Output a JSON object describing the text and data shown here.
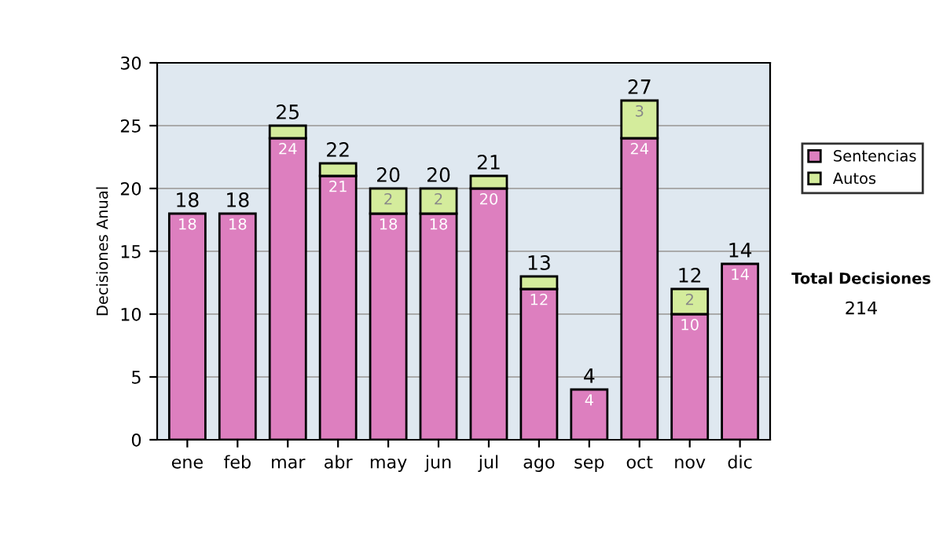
{
  "chart_data": {
    "type": "bar",
    "stacked": true,
    "ylabel": "Decisiones Anual",
    "categories": [
      "ene",
      "feb",
      "mar",
      "abr",
      "may",
      "jun",
      "jul",
      "ago",
      "sep",
      "oct",
      "nov",
      "dic"
    ],
    "series": [
      {
        "name": "Sentencias",
        "color": "#dd7fbf",
        "values": [
          18,
          18,
          24,
          21,
          18,
          18,
          20,
          12,
          4,
          24,
          10,
          14
        ],
        "value_labels": [
          "18",
          "18",
          "24",
          "21",
          "18",
          "18",
          "20",
          "12",
          "4",
          "24",
          "10",
          "14"
        ]
      },
      {
        "name": "Autos",
        "color": "#d4ec9c",
        "values": [
          null,
          null,
          1,
          1,
          2,
          2,
          1,
          1,
          null,
          3,
          2,
          null
        ],
        "value_labels": [
          null,
          null,
          null,
          null,
          "2",
          "2",
          null,
          null,
          null,
          "3",
          "2",
          null
        ]
      }
    ],
    "totals": [
      "18",
      "18",
      "25",
      "22",
      "20",
      "20",
      "21",
      "13",
      "4",
      "27",
      "12",
      "14"
    ],
    "ylim": [
      0,
      30
    ],
    "yticks": [
      0,
      5,
      10,
      15,
      20,
      25,
      30
    ],
    "grid": "y",
    "legend": "right",
    "annotations": [
      "Total Decisiones",
      "214"
    ]
  }
}
